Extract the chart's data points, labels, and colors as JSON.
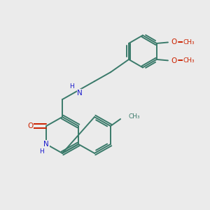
{
  "background_color": "#ebebeb",
  "bond_color": "#3a7a6a",
  "bond_width": 1.4,
  "N_color": "#1a1acc",
  "O_color": "#cc2200",
  "text_color": "#3a7a6a",
  "figsize": [
    3.0,
    3.0
  ],
  "dpi": 100,
  "xlim": [
    0,
    10
  ],
  "ylim": [
    0,
    10
  ]
}
